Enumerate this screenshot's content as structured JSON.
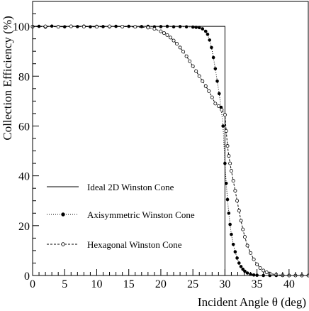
{
  "chart_data": {
    "type": "line",
    "title": "",
    "xlabel": "Incident Angle θ (deg)",
    "ylabel": "Collection Efficiency (%)",
    "xlim": [
      0,
      43
    ],
    "ylim": [
      0,
      110
    ],
    "xticks": [
      0,
      5,
      10,
      15,
      20,
      25,
      30,
      35,
      40
    ],
    "yticks": [
      0,
      20,
      40,
      60,
      80,
      100
    ],
    "grid": false,
    "legend": "left",
    "series": [
      {
        "name": "Ideal 2D Winston Cone",
        "style": "solid",
        "x": [
          0,
          30,
          30,
          43
        ],
        "y": [
          100,
          100,
          0,
          0
        ]
      },
      {
        "name": "Axisymmetric Winston Cone",
        "style": "dotted-filled-circle",
        "x": [
          0,
          1,
          2,
          3,
          4,
          5,
          6,
          7,
          8,
          9,
          10,
          11,
          12,
          13,
          14,
          15,
          16,
          17,
          18,
          19,
          20,
          21,
          22,
          23,
          24,
          25,
          25.5,
          26,
          26.5,
          27,
          27.3,
          27.6,
          27.9,
          28.2,
          28.5,
          28.8,
          29.1,
          29.4,
          29.7,
          30.0,
          30.2,
          30.4,
          30.6,
          30.8,
          31.0,
          31.3,
          31.6,
          31.9,
          32.2,
          32.5,
          32.8,
          33.1,
          33.5,
          34.0,
          34.5,
          35,
          36,
          37,
          38,
          39,
          40,
          41,
          42,
          43
        ],
        "y": [
          99.8,
          100.0,
          99.7,
          100.1,
          99.9,
          99.8,
          100.0,
          99.9,
          100.1,
          99.8,
          100.0,
          99.9,
          99.8,
          100.0,
          99.9,
          100.0,
          99.8,
          99.9,
          100.0,
          99.8,
          99.9,
          100.0,
          99.8,
          99.9,
          99.8,
          99.7,
          99.6,
          99.5,
          99.0,
          98.0,
          96.8,
          94.5,
          91.5,
          87.5,
          83.0,
          78.0,
          73.0,
          67.5,
          60.0,
          45.0,
          37.0,
          30.5,
          25.0,
          20.5,
          16.5,
          12.5,
          9.5,
          7.0,
          5.0,
          3.6,
          2.5,
          1.7,
          1.0,
          0.5,
          0.2,
          0.1,
          0.0,
          0.0,
          0.0,
          0.0,
          0.0,
          0.0,
          0.0,
          0.0
        ]
      },
      {
        "name": "Hexagonal Winston Cone",
        "style": "dashed-open-circle",
        "x": [
          0,
          2,
          4,
          6,
          8,
          10,
          12,
          14,
          16,
          18,
          19,
          20,
          20.5,
          21,
          21.5,
          22,
          22.5,
          23,
          23.5,
          24,
          24.5,
          25,
          25.5,
          26,
          26.5,
          27,
          27.5,
          28,
          28.5,
          29,
          29.5,
          30.0,
          30.2,
          30.4,
          30.6,
          30.8,
          31.0,
          31.3,
          31.6,
          31.9,
          32.2,
          32.5,
          32.8,
          33.1,
          33.5,
          34.0,
          34.5,
          35.0,
          35.5,
          36.0,
          36.5,
          37,
          38,
          39,
          40,
          41,
          42,
          43
        ],
        "y": [
          99.9,
          100.0,
          99.8,
          100.0,
          99.9,
          99.8,
          100.0,
          99.9,
          99.8,
          99.5,
          99.0,
          98.0,
          97.3,
          96.5,
          95.5,
          94.3,
          93.0,
          91.5,
          89.8,
          88.0,
          86.0,
          84.0,
          82.0,
          80.0,
          78.0,
          76.0,
          74.0,
          71.5,
          69.0,
          68.0,
          66.5,
          64.5,
          58.0,
          52.0,
          48.0,
          45.0,
          42.0,
          38.0,
          34.0,
          30.0,
          26.0,
          22.0,
          18.5,
          15.5,
          12.0,
          9.0,
          6.5,
          4.5,
          3.0,
          2.0,
          1.3,
          0.8,
          0.3,
          0.1,
          0.0,
          0.0,
          0.0,
          0.0
        ]
      }
    ]
  }
}
